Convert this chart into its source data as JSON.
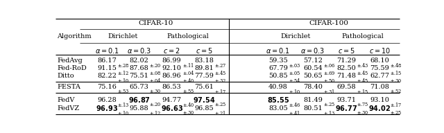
{
  "title_cifar10": "CIFAR-10",
  "title_cifar100": "CIFAR-100",
  "rows": [
    {
      "name": "FedAvg",
      "values": [
        "86.17",
        ".28",
        "82.02",
        ".20",
        "86.99",
        ".11",
        "83.18",
        ".27",
        "59.35",
        ".03",
        "57.12",
        ".06",
        "71.29",
        ".43",
        "68.10",
        ".48"
      ],
      "bold": [
        false,
        false,
        false,
        false,
        false,
        false,
        false,
        false
      ]
    },
    {
      "name": "Fed-RoD",
      "values": [
        "91.15",
        ".12",
        "87.68",
        ".08",
        "92.10",
        ".04",
        "89.81",
        ".45",
        "67.79",
        ".05",
        "60.54",
        ".69",
        "82.50",
        ".45",
        "75.59",
        ".15"
      ],
      "bold": [
        false,
        false,
        false,
        false,
        false,
        false,
        false,
        false
      ]
    },
    {
      "name": "Ditto",
      "values": [
        "82.22",
        ".10",
        "75.51",
        ".04",
        "86.96",
        ".40",
        "77.59",
        ".32",
        "50.85",
        ".54",
        "50.65",
        ".50",
        "71.48",
        ".45",
        "62.77",
        ".30"
      ],
      "bold": [
        false,
        false,
        false,
        false,
        false,
        false,
        false,
        false
      ]
    },
    {
      "name": "FESTA",
      "values": [
        "75.16",
        ".53",
        "65.73",
        ".30",
        "86.53",
        ".55",
        "75.61",
        ".17",
        "40.98",
        ".10",
        "78.40",
        ".31",
        "69.58",
        ".15",
        "71.08",
        ".52"
      ],
      "bold": [
        false,
        false,
        false,
        false,
        false,
        false,
        false,
        false
      ]
    },
    {
      "name": "FedV",
      "values": [
        "96.28",
        ".13",
        "96.87",
        ".20",
        "94.77",
        ".40",
        "97.54",
        ".25",
        "85.55",
        ".46",
        "81.49",
        ".25",
        "93.71",
        ".75",
        "93.10",
        ".17"
      ],
      "bold": [
        false,
        true,
        false,
        true,
        true,
        false,
        false,
        false
      ]
    },
    {
      "name": "FedVZ",
      "values": [
        "96.93",
        ".10",
        "95.88",
        ".12",
        "96.63",
        ".30",
        "96.85",
        ".21",
        "83.05",
        ".41",
        "80.51",
        ".13",
        "96.77",
        ".30",
        "94.02",
        ".25"
      ],
      "bold": [
        true,
        false,
        true,
        false,
        false,
        false,
        true,
        true
      ]
    }
  ],
  "figsize": [
    6.4,
    1.92
  ],
  "dpi": 100
}
